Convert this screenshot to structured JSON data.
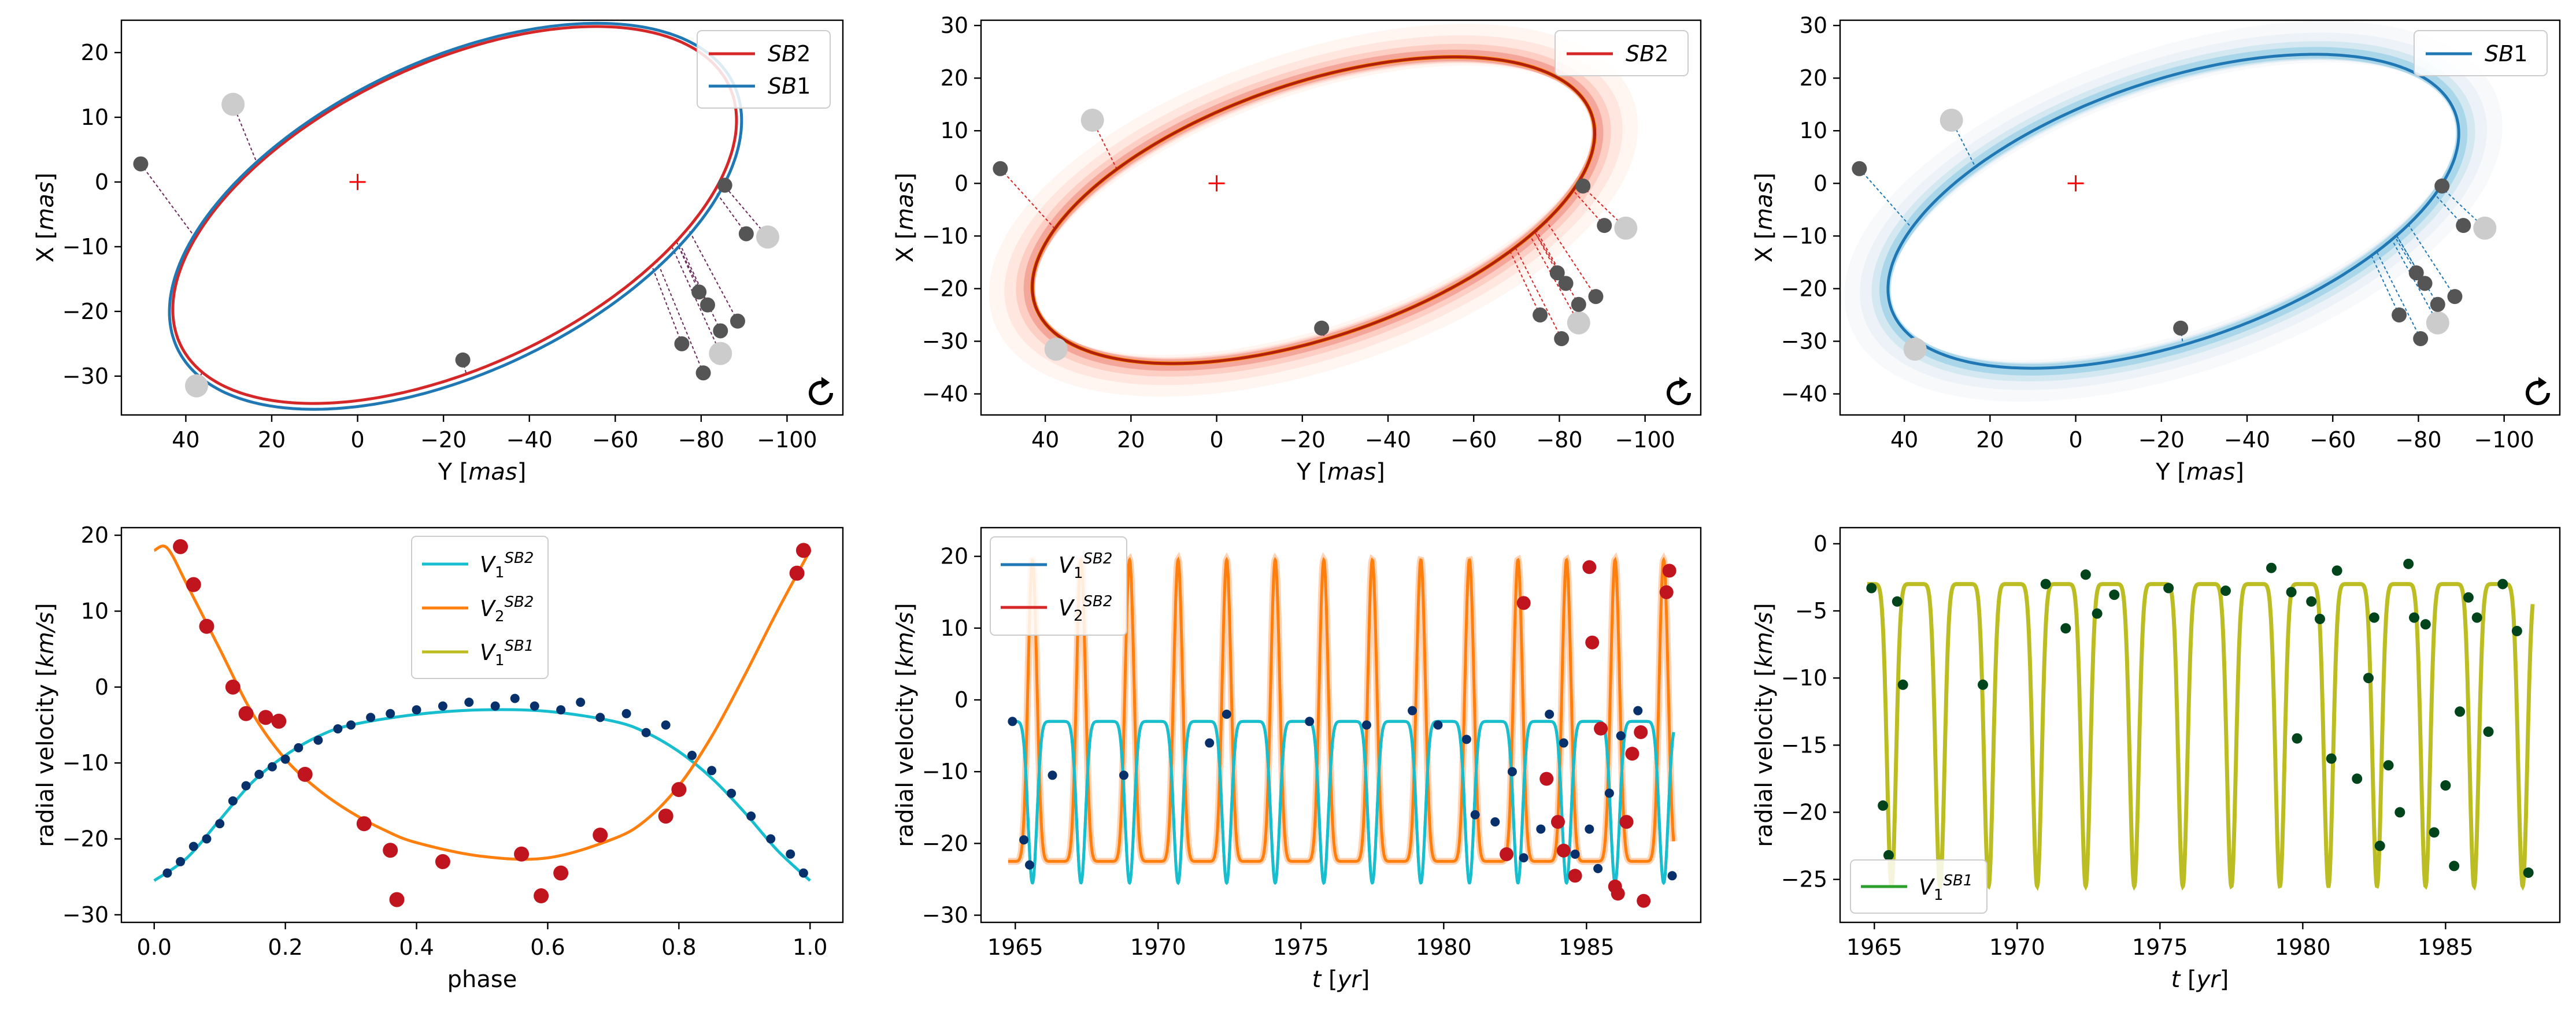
{
  "colors": {
    "sb2": "#d62728",
    "sb1": "#1f77b4",
    "v1_sb2": "#17becf",
    "v2_sb2": "#ff7f0e",
    "v1_sb1": "#bcbd22",
    "v1_sb1_legend": "#2ca02c",
    "point_sb1": "#08306b",
    "point_sb2": "#c0141f",
    "point_sb1_panel6": "#00441b",
    "orbit_point_dark": "#555555",
    "orbit_point_light": "#cccccc",
    "center_mark": "#ff0000"
  },
  "chart_data": [
    {
      "type": "scatter",
      "title": "",
      "xlabel": "Y [mas]",
      "ylabel": "X [mas]",
      "xlim": [
        55,
        -113
      ],
      "ylim": [
        -36,
        25
      ],
      "xticks": [
        40,
        20,
        0,
        -20,
        -40,
        -60,
        -80,
        -100
      ],
      "yticks": [
        20,
        10,
        0,
        -10,
        -20,
        -30
      ],
      "legend": {
        "position": "top-right",
        "entries": [
          "SB2",
          "SB1"
        ]
      },
      "orbits": [
        {
          "name": "SB2",
          "center_y": -22.6,
          "center_x": -5.1,
          "a": 67.5,
          "b": 24.5,
          "angle": -14.5
        },
        {
          "name": "SB1",
          "center_y": -22.8,
          "center_x": -5.3,
          "a": 68.5,
          "b": 25.2,
          "angle": -14.5
        }
      ],
      "observed_dark": [
        [
          50.5,
          2.8
        ],
        [
          -85.5,
          -0.5
        ],
        [
          -90.5,
          -8.0
        ],
        [
          -79.5,
          -17.0
        ],
        [
          -81.5,
          -19.0
        ],
        [
          -88.5,
          -21.5
        ],
        [
          -84.5,
          -23.0
        ],
        [
          -75.5,
          -25.0
        ],
        [
          -80.5,
          -29.5
        ],
        [
          -24.5,
          -27.5
        ]
      ],
      "observed_light": [
        [
          29.0,
          12.0
        ],
        [
          -95.5,
          -8.5
        ],
        [
          -84.5,
          -26.5
        ],
        [
          37.5,
          -31.5
        ]
      ],
      "show_rotation_icon": true
    },
    {
      "type": "scatter",
      "title": "",
      "xlabel": "Y [mas]",
      "ylabel": "X [mas]",
      "xlim": [
        55,
        -113
      ],
      "ylim": [
        -44,
        31
      ],
      "xticks": [
        40,
        20,
        0,
        -20,
        -40,
        -60,
        -80,
        -100
      ],
      "yticks": [
        30,
        20,
        10,
        0,
        -10,
        -20,
        -30,
        -40
      ],
      "legend": {
        "position": "top-right",
        "entries": [
          "SB2"
        ]
      },
      "orbits": [
        {
          "name": "SB2",
          "center_y": -22.6,
          "center_x": -5.1,
          "a": 67.5,
          "b": 24.5,
          "angle": -14.5
        }
      ],
      "observed_dark": [
        [
          50.5,
          2.8
        ],
        [
          -85.5,
          -0.5
        ],
        [
          -90.5,
          -8.0
        ],
        [
          -79.5,
          -17.0
        ],
        [
          -81.5,
          -19.0
        ],
        [
          -88.5,
          -21.5
        ],
        [
          -84.5,
          -23.0
        ],
        [
          -75.5,
          -25.0
        ],
        [
          -80.5,
          -29.5
        ],
        [
          -24.5,
          -27.5
        ]
      ],
      "observed_light": [
        [
          29.0,
          12.0
        ],
        [
          -95.5,
          -8.5
        ],
        [
          -84.5,
          -26.5
        ],
        [
          37.5,
          -31.5
        ]
      ],
      "show_rotation_icon": true
    },
    {
      "type": "scatter",
      "title": "",
      "xlabel": "Y [mas]",
      "ylabel": "X [mas]",
      "xlim": [
        55,
        -113
      ],
      "ylim": [
        -44,
        31
      ],
      "xticks": [
        40,
        20,
        0,
        -20,
        -40,
        -60,
        -80,
        -100
      ],
      "yticks": [
        30,
        20,
        10,
        0,
        -10,
        -20,
        -30,
        -40
      ],
      "legend": {
        "position": "top-right",
        "entries": [
          "SB1"
        ]
      },
      "orbits": [
        {
          "name": "SB1",
          "center_y": -22.8,
          "center_x": -5.3,
          "a": 68.5,
          "b": 25.2,
          "angle": -14.5
        }
      ],
      "observed_dark": [
        [
          50.5,
          2.8
        ],
        [
          -85.5,
          -0.5
        ],
        [
          -90.5,
          -8.0
        ],
        [
          -79.5,
          -17.0
        ],
        [
          -81.5,
          -19.0
        ],
        [
          -88.5,
          -21.5
        ],
        [
          -84.5,
          -23.0
        ],
        [
          -75.5,
          -25.0
        ],
        [
          -80.5,
          -29.5
        ],
        [
          -24.5,
          -27.5
        ]
      ],
      "observed_light": [
        [
          29.0,
          12.0
        ],
        [
          -95.5,
          -8.5
        ],
        [
          -84.5,
          -26.5
        ],
        [
          37.5,
          -31.5
        ]
      ],
      "show_rotation_icon": true
    },
    {
      "type": "line",
      "title": "",
      "xlabel": "phase",
      "ylabel": "radial velocity [km/s]",
      "xlim": [
        -0.05,
        1.05
      ],
      "ylim": [
        -31,
        21
      ],
      "xticks": [
        0.0,
        0.2,
        0.4,
        0.6,
        0.8,
        1.0
      ],
      "yticks": [
        20,
        10,
        0,
        -10,
        -20,
        -30
      ],
      "legend": {
        "position": "top-center",
        "entries": [
          "V1 SB2",
          "V2 SB2",
          "V1 SB1"
        ]
      },
      "series": [
        {
          "name": "V1 SB2",
          "points": [
            [
              0.0,
              -25.5
            ],
            [
              0.05,
              -22.5
            ],
            [
              0.1,
              -17.5
            ],
            [
              0.15,
              -12.5
            ],
            [
              0.2,
              -9.0
            ],
            [
              0.25,
              -6.5
            ],
            [
              0.3,
              -5.0
            ],
            [
              0.4,
              -3.6
            ],
            [
              0.5,
              -3.0
            ],
            [
              0.6,
              -3.2
            ],
            [
              0.7,
              -4.5
            ],
            [
              0.75,
              -6.0
            ],
            [
              0.8,
              -8.5
            ],
            [
              0.85,
              -12.0
            ],
            [
              0.9,
              -16.5
            ],
            [
              0.95,
              -21.5
            ],
            [
              1.0,
              -25.5
            ]
          ]
        },
        {
          "name": "V2 SB2",
          "points": [
            [
              0.0,
              18.0
            ],
            [
              0.02,
              18.3
            ],
            [
              0.05,
              13.5
            ],
            [
              0.1,
              5.0
            ],
            [
              0.15,
              -3.5
            ],
            [
              0.2,
              -9.5
            ],
            [
              0.25,
              -13.5
            ],
            [
              0.3,
              -16.5
            ],
            [
              0.35,
              -18.8
            ],
            [
              0.4,
              -20.5
            ],
            [
              0.5,
              -22.3
            ],
            [
              0.6,
              -22.5
            ],
            [
              0.7,
              -20.0
            ],
            [
              0.75,
              -17.5
            ],
            [
              0.8,
              -13.0
            ],
            [
              0.85,
              -6.5
            ],
            [
              0.9,
              1.5
            ],
            [
              0.95,
              10.0
            ],
            [
              1.0,
              18.0
            ]
          ]
        }
      ],
      "rv_sb1_points": [
        [
          0.02,
          -24.5
        ],
        [
          0.04,
          -23.0
        ],
        [
          0.06,
          -21.0
        ],
        [
          0.08,
          -20.0
        ],
        [
          0.1,
          -18.0
        ],
        [
          0.12,
          -15.0
        ],
        [
          0.14,
          -13.0
        ],
        [
          0.16,
          -11.5
        ],
        [
          0.18,
          -10.5
        ],
        [
          0.2,
          -9.5
        ],
        [
          0.22,
          -8.0
        ],
        [
          0.25,
          -7.0
        ],
        [
          0.28,
          -5.5
        ],
        [
          0.3,
          -5.0
        ],
        [
          0.33,
          -4.0
        ],
        [
          0.36,
          -3.5
        ],
        [
          0.4,
          -3.0
        ],
        [
          0.44,
          -2.5
        ],
        [
          0.48,
          -2.0
        ],
        [
          0.52,
          -2.5
        ],
        [
          0.55,
          -1.5
        ],
        [
          0.58,
          -2.5
        ],
        [
          0.62,
          -3.0
        ],
        [
          0.65,
          -2.0
        ],
        [
          0.68,
          -4.0
        ],
        [
          0.72,
          -3.5
        ],
        [
          0.75,
          -6.0
        ],
        [
          0.78,
          -5.0
        ],
        [
          0.82,
          -9.0
        ],
        [
          0.85,
          -11.0
        ],
        [
          0.88,
          -14.0
        ],
        [
          0.91,
          -17.0
        ],
        [
          0.94,
          -20.0
        ],
        [
          0.97,
          -22.0
        ],
        [
          0.99,
          -24.5
        ]
      ],
      "rv_sb2_points": [
        [
          0.04,
          18.5
        ],
        [
          0.06,
          13.5
        ],
        [
          0.08,
          8.0
        ],
        [
          0.12,
          0.0
        ],
        [
          0.14,
          -3.5
        ],
        [
          0.17,
          -4.0
        ],
        [
          0.19,
          -4.5
        ],
        [
          0.23,
          -11.5
        ],
        [
          0.32,
          -18.0
        ],
        [
          0.36,
          -21.5
        ],
        [
          0.37,
          -28.0
        ],
        [
          0.44,
          -23.0
        ],
        [
          0.56,
          -22.0
        ],
        [
          0.59,
          -27.5
        ],
        [
          0.62,
          -24.5
        ],
        [
          0.68,
          -19.5
        ],
        [
          0.78,
          -17.0
        ],
        [
          0.8,
          -13.5
        ],
        [
          0.98,
          15.0
        ],
        [
          0.99,
          18.0
        ]
      ]
    },
    {
      "type": "line",
      "title": "",
      "xlabel": "t [yr]",
      "ylabel": "radial velocity [km/s]",
      "xlim": [
        1963.8,
        1989.0
      ],
      "ylim": [
        -31,
        24
      ],
      "xticks": [
        1965,
        1970,
        1975,
        1980,
        1985
      ],
      "yticks": [
        20,
        10,
        0,
        -10,
        -20,
        -30
      ],
      "legend": {
        "position": "top-left",
        "entries": [
          "V1 SB2",
          "V2 SB2"
        ]
      },
      "period_yr": 1.7,
      "t_start": 1964.75,
      "t_end": 1988.05,
      "rv_sb1_points": [
        [
          1964.9,
          -3.0
        ],
        [
          1965.3,
          -19.5
        ],
        [
          1965.5,
          -23.0
        ],
        [
          1966.3,
          -10.5
        ],
        [
          1968.8,
          -10.5
        ],
        [
          1971.8,
          -6.0
        ],
        [
          1972.4,
          -2.0
        ],
        [
          1975.3,
          -3.0
        ],
        [
          1977.3,
          -3.5
        ],
        [
          1978.9,
          -1.5
        ],
        [
          1979.8,
          -3.5
        ],
        [
          1980.8,
          -5.5
        ],
        [
          1981.1,
          -16.0
        ],
        [
          1981.8,
          -17.0
        ],
        [
          1982.4,
          -10.0
        ],
        [
          1982.8,
          -22.0
        ],
        [
          1983.4,
          -18.0
        ],
        [
          1983.7,
          -2.0
        ],
        [
          1984.2,
          -6.0
        ],
        [
          1984.6,
          -21.5
        ],
        [
          1985.1,
          -18.0
        ],
        [
          1985.4,
          -23.5
        ],
        [
          1985.8,
          -13.0
        ],
        [
          1986.2,
          -5.0
        ],
        [
          1986.8,
          -1.5
        ],
        [
          1988.0,
          -24.5
        ]
      ],
      "rv_sb2_points": [
        [
          1982.8,
          13.5
        ],
        [
          1983.6,
          -11.0
        ],
        [
          1984.2,
          -21.0
        ],
        [
          1984.6,
          -24.5
        ],
        [
          1985.1,
          18.5
        ],
        [
          1985.2,
          8.0
        ],
        [
          1985.5,
          -4.0
        ],
        [
          1986.0,
          -26.0
        ],
        [
          1986.4,
          -17.0
        ],
        [
          1986.6,
          -7.5
        ],
        [
          1986.9,
          -4.5
        ],
        [
          1987.0,
          -28.0
        ],
        [
          1987.8,
          15.0
        ],
        [
          1987.9,
          18.0
        ],
        [
          1982.2,
          -21.5
        ],
        [
          1984.0,
          -17.0
        ],
        [
          1986.1,
          -27.0
        ]
      ]
    },
    {
      "type": "line",
      "title": "",
      "xlabel": "t [yr]",
      "ylabel": "radial velocity [km/s]",
      "xlim": [
        1963.8,
        1989.0
      ],
      "ylim": [
        -28.2,
        1.2
      ],
      "xticks": [
        1965,
        1970,
        1975,
        1980,
        1985
      ],
      "yticks": [
        0,
        -5,
        -10,
        -15,
        -20,
        -25
      ],
      "legend": {
        "position": "bottom-left",
        "entries": [
          "V1 SB1"
        ]
      },
      "period_yr": 1.7,
      "t_start": 1964.75,
      "t_end": 1988.05,
      "rv_sb1_points": [
        [
          1964.9,
          -3.3
        ],
        [
          1965.3,
          -19.5
        ],
        [
          1965.5,
          -23.2
        ],
        [
          1965.8,
          -4.3
        ],
        [
          1966.0,
          -10.5
        ],
        [
          1968.8,
          -10.5
        ],
        [
          1971.0,
          -3.0
        ],
        [
          1971.7,
          -6.3
        ],
        [
          1972.4,
          -2.3
        ],
        [
          1972.8,
          -5.2
        ],
        [
          1973.4,
          -3.8
        ],
        [
          1975.3,
          -3.3
        ],
        [
          1977.3,
          -3.5
        ],
        [
          1978.9,
          -1.8
        ],
        [
          1979.6,
          -3.6
        ],
        [
          1979.8,
          -14.5
        ],
        [
          1980.3,
          -4.3
        ],
        [
          1980.6,
          -5.6
        ],
        [
          1981.0,
          -16.0
        ],
        [
          1981.2,
          -2.0
        ],
        [
          1981.9,
          -17.5
        ],
        [
          1982.3,
          -10.0
        ],
        [
          1982.5,
          -5.5
        ],
        [
          1982.7,
          -22.5
        ],
        [
          1983.0,
          -16.5
        ],
        [
          1983.4,
          -20.0
        ],
        [
          1983.7,
          -1.5
        ],
        [
          1983.9,
          -5.5
        ],
        [
          1984.3,
          -6.0
        ],
        [
          1984.6,
          -21.5
        ],
        [
          1985.0,
          -18.0
        ],
        [
          1985.3,
          -24.0
        ],
        [
          1985.5,
          -12.5
        ],
        [
          1985.8,
          -4.0
        ],
        [
          1986.1,
          -5.5
        ],
        [
          1986.5,
          -14.0
        ],
        [
          1987.0,
          -3.0
        ],
        [
          1987.5,
          -6.5
        ],
        [
          1987.9,
          -24.5
        ]
      ]
    }
  ]
}
